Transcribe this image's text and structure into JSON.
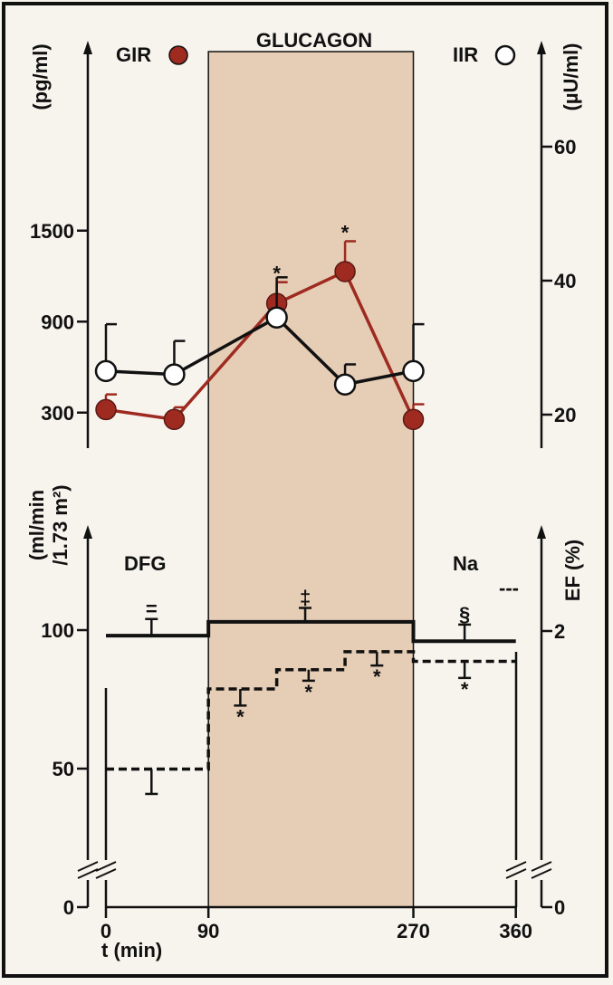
{
  "chart_data": [
    {
      "type": "line",
      "title": "GLUCAGON",
      "x": [
        0,
        90,
        180,
        270,
        360
      ],
      "left_axis": {
        "unit": "(pg/ml)",
        "ticks": [
          300,
          900,
          1500
        ],
        "ylim": [
          0,
          1900
        ]
      },
      "right_axis": {
        "unit": "(µU/ml)",
        "ticks": [
          20,
          40,
          60
        ],
        "ylim": [
          0,
          73.3
        ]
      },
      "series": [
        {
          "name": "GIR",
          "marker": "filled",
          "color": "#9e2a20",
          "axis": "left",
          "x": [
            0,
            60,
            150,
            210,
            270
          ],
          "values": [
            320,
            255,
            1020,
            1230,
            255
          ],
          "error": [
            100,
            80,
            140,
            200,
            100
          ],
          "significance": [
            "",
            "",
            "*",
            "*",
            ""
          ]
        },
        {
          "name": "IIR",
          "marker": "open",
          "color": "#111111",
          "axis": "right",
          "x": [
            0,
            60,
            150,
            210,
            270
          ],
          "values": [
            26.5,
            26,
            34.5,
            24.5,
            26.5
          ],
          "error": [
            7,
            5,
            6,
            3,
            7
          ]
        }
      ]
    },
    {
      "type": "line",
      "xlabel": "t (min)",
      "x_ticks": [
        0,
        90,
        270,
        360
      ],
      "left_axis": {
        "unit_line1": "(ml/min",
        "unit_line2": "/1.73 m²)",
        "ticks": [
          0,
          50,
          100
        ]
      },
      "right_axis": {
        "unit": "EF (%)",
        "ticks": [
          0,
          2
        ]
      },
      "series": [
        {
          "name": "DFG",
          "style": "solid",
          "steps": [
            {
              "x0": 0,
              "x1": 90,
              "y": 98
            },
            {
              "x0": 90,
              "x1": 270,
              "y": 103
            },
            {
              "x0": 270,
              "x1": 360,
              "y": 96
            }
          ],
          "errors": [
            {
              "x": 40,
              "y": 98,
              "err": 6,
              "dir": "up",
              "mark": "="
            },
            {
              "x": 175,
              "y": 103,
              "err": 5,
              "dir": "up",
              "mark": "‡"
            },
            {
              "x": 315,
              "y": 96,
              "err": 6,
              "dir": "up",
              "mark": "§"
            }
          ]
        },
        {
          "name": "Na",
          "legend": "---",
          "style": "dashed",
          "steps": [
            {
              "x0": 0,
              "x1": 90,
              "y": 1.0
            },
            {
              "x0": 90,
              "x1": 150,
              "y": 1.58
            },
            {
              "x0": 150,
              "x1": 210,
              "y": 1.72
            },
            {
              "x0": 210,
              "x1": 270,
              "y": 1.85
            },
            {
              "x0": 270,
              "x1": 360,
              "y": 1.78
            }
          ],
          "errors": [
            {
              "x": 40,
              "y": 1.0,
              "err": 0.18,
              "dir": "down",
              "mark": ""
            },
            {
              "x": 118,
              "y": 1.58,
              "err": 0.12,
              "dir": "down",
              "mark": "*"
            },
            {
              "x": 178,
              "y": 1.72,
              "err": 0.08,
              "dir": "down",
              "mark": "*"
            },
            {
              "x": 238,
              "y": 1.85,
              "err": 0.1,
              "dir": "down",
              "mark": "*"
            },
            {
              "x": 315,
              "y": 1.78,
              "err": 0.12,
              "dir": "down",
              "mark": "*"
            }
          ]
        }
      ]
    }
  ]
}
